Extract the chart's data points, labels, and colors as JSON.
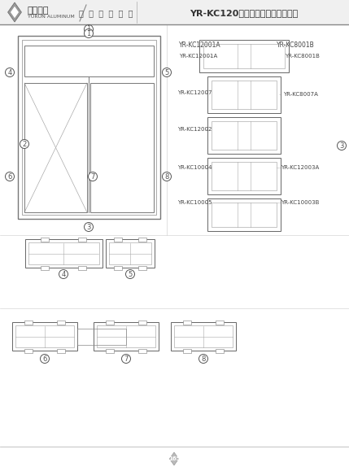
{
  "title": "YR-KC120断桥窗纱一体系列装配图",
  "subtitle": "品质 创 造 未 来",
  "company": "余润铝业",
  "company_en": "YURUN ALUMINUM",
  "bg_color": "#ffffff",
  "line_color": "#555555",
  "text_color": "#333333",
  "header_bg": "#e0e0e0",
  "part_labels_top": [
    "YR-KC12001A",
    "YR-KC8001B"
  ],
  "part_labels_mid": [
    "YR-KC12007",
    "YR-KC8007A"
  ],
  "part_labels_mid2": [
    "YR-KC12002",
    ""
  ],
  "part_labels_mid3": [
    "YR-KC10004",
    "YR-KC12003A"
  ],
  "part_labels_mid4": [
    "YR-KC10005",
    "YR-KC10003B"
  ],
  "circle_nums": [
    "1",
    "2",
    "3",
    "4",
    "5",
    "6",
    "7",
    "8"
  ],
  "page_num": "165"
}
